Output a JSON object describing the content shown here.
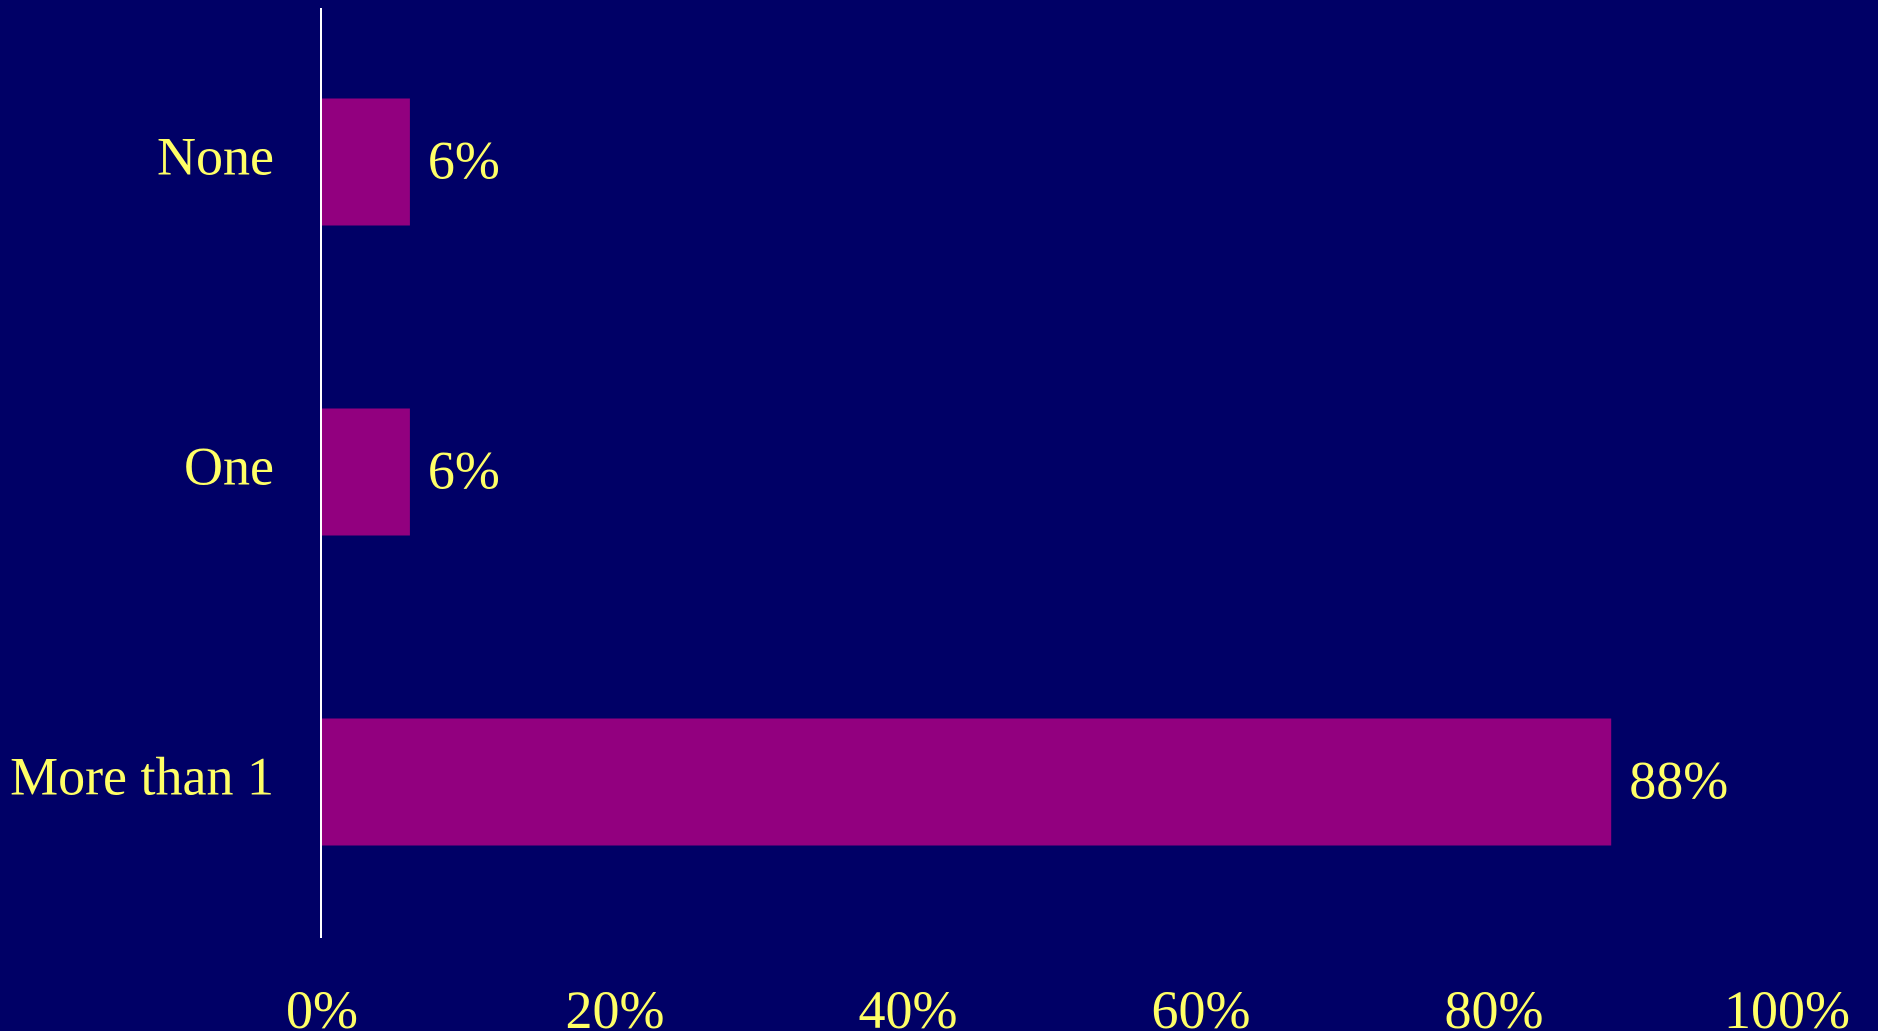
{
  "chart_data": {
    "type": "bar",
    "orientation": "horizontal",
    "categories": [
      "None",
      "One",
      "More than 1"
    ],
    "values": [
      6,
      6,
      88
    ],
    "value_labels": [
      "6%",
      "6%",
      "88%"
    ],
    "xlim": [
      0,
      100
    ],
    "xticks": [
      0,
      20,
      40,
      60,
      80,
      100
    ],
    "xtick_labels": [
      "0%",
      "20%",
      "40%",
      "60%",
      "80%",
      "100%"
    ],
    "title": "",
    "xlabel": "",
    "ylabel": "",
    "grid": false,
    "legend": "none",
    "colors": {
      "background": "#000066",
      "bar": "#92007F",
      "text": "#FFFF66",
      "axis": "#FFFFFF"
    }
  }
}
